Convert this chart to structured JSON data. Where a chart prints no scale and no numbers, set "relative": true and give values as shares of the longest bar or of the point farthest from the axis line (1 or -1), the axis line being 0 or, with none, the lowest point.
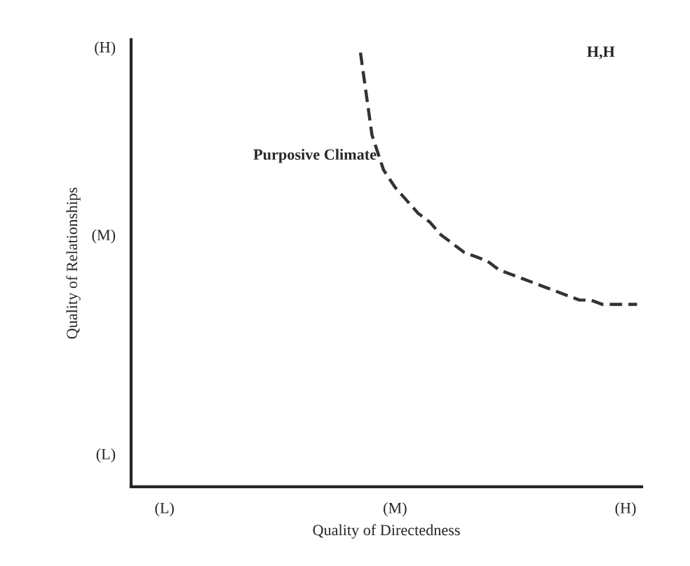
{
  "chart_data": {
    "type": "line",
    "relative": true,
    "xlabel": "Quality of Directedness",
    "ylabel": "Quality of Relationships",
    "categories": [
      "(L)",
      null,
      null,
      null,
      null,
      null,
      null,
      null,
      null,
      null,
      null,
      null,
      null,
      null,
      null,
      null,
      null,
      null,
      null,
      null,
      "(M)",
      null,
      null,
      null,
      null,
      null,
      null,
      null,
      null,
      null,
      null,
      null,
      null,
      null,
      null,
      null,
      null,
      null,
      null,
      null,
      "(H)",
      null
    ],
    "series": [
      {
        "color": "#333333",
        "values": [
          null,
          null,
          null,
          null,
          null,
          null,
          null,
          null,
          null,
          null,
          null,
          null,
          null,
          null,
          null,
          null,
          null,
          1.0,
          0.81,
          0.73,
          0.69,
          0.66,
          0.63,
          0.61,
          0.58,
          0.56,
          0.54,
          0.53,
          0.52,
          0.5,
          0.49,
          0.48,
          0.47,
          0.46,
          0.45,
          0.44,
          0.43,
          0.43,
          0.42,
          0.42,
          0.42,
          0.42
        ]
      }
    ],
    "line_style": "dashed",
    "annotations": [
      "Purposive Climate",
      "H,H",
      "(H)",
      "(M)",
      "(L)"
    ]
  }
}
